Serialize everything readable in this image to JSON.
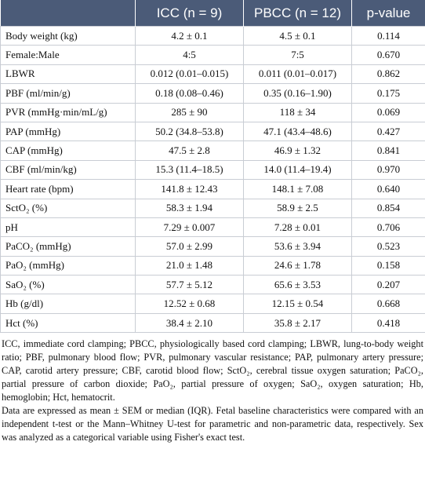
{
  "table": {
    "header": [
      "",
      "ICC (n = 9)",
      "PBCC (n = 12)",
      "p-value"
    ],
    "rows": [
      [
        "Body weight (kg)",
        "4.2 ± 0.1",
        "4.5 ± 0.1",
        "0.114"
      ],
      [
        "Female:Male",
        "4:5",
        "7:5",
        "0.670"
      ],
      [
        "LBWR",
        "0.012 (0.01–0.015)",
        "0.011 (0.01–0.017)",
        "0.862"
      ],
      [
        "PBF (ml/min/g)",
        "0.18 (0.08–0.46)",
        "0.35 (0.16–1.90)",
        "0.175"
      ],
      [
        "PVR (mmHg·min/mL/g)",
        "285 ± 90",
        "118 ± 34",
        "0.069"
      ],
      [
        "PAP (mmHg)",
        "50.2 (34.8–53.8)",
        "47.1 (43.4–48.6)",
        "0.427"
      ],
      [
        "CAP (mmHg)",
        "47.5 ± 2.8",
        "46.9 ± 1.32",
        "0.841"
      ],
      [
        "CBF (ml/min/kg)",
        "15.3 (11.4–18.5)",
        "14.0 (11.4–19.4)",
        "0.970"
      ],
      [
        "Heart rate (bpm)",
        "141.8 ± 12.43",
        "148.1 ± 7.08",
        "0.640"
      ],
      [
        "SctO₂ (%)",
        "58.3 ± 1.94",
        "58.9 ± 2.5",
        "0.854"
      ],
      [
        "pH",
        "7.29 ± 0.007",
        "7.28 ± 0.01",
        "0.706"
      ],
      [
        "PaCO₂ (mmHg)",
        "57.0 ± 2.99",
        "53.6 ± 3.94",
        "0.523"
      ],
      [
        "PaO₂ (mmHg)",
        "21.0 ± 1.48",
        "24.6 ± 1.78",
        "0.158"
      ],
      [
        "SaO₂ (%)",
        "57.7 ± 5.12",
        "65.6 ± 3.53",
        "0.207"
      ],
      [
        "Hb (g/dl)",
        "12.52 ± 0.68",
        "12.15 ± 0.54",
        "0.668"
      ],
      [
        "Hct (%)",
        "38.4 ± 2.10",
        "35.8 ± 2.17",
        "0.418"
      ]
    ]
  },
  "notes": [
    "ICC, immediate cord clamping; PBCC, physiologically based cord clamping; LBWR, lung-to-body weight ratio; PBF, pulmonary blood flow; PVR, pulmonary vascular resistance; PAP, pulmonary artery pressure; CAP, carotid artery pressure; CBF, carotid blood flow; SctO₂, cerebral tissue oxygen saturation; PaCO₂, partial pressure of carbon dioxide; PaO₂, partial pressure of oxygen; SaO₂, oxygen saturation; Hb, hemoglobin; Hct, hematocrit.",
    "Data are expressed as mean ± SEM or median (IQR). Fetal baseline characteristics were compared with an independent t-test or the Mann–Whitney U-test for parametric and non-parametric data, respectively. Sex was analyzed as a categorical variable using Fisher's exact test."
  ]
}
